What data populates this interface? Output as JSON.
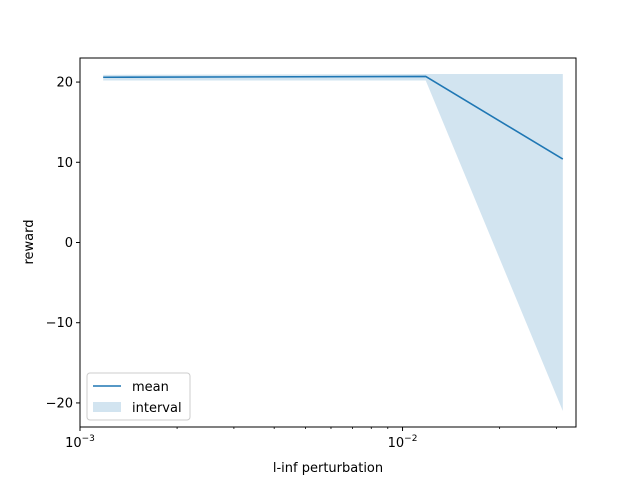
{
  "chart_data": {
    "type": "line",
    "xlabel": "l-inf perturbation",
    "ylabel": "reward",
    "x_scale": "log",
    "xlim": [
      0.001,
      0.0345
    ],
    "ylim": [
      -23,
      23
    ],
    "x_tick_labels": [
      {
        "value": 0.001,
        "base": "10",
        "exp": "−3"
      },
      {
        "value": 0.01,
        "base": "10",
        "exp": "−2"
      }
    ],
    "y_ticks": [
      20,
      10,
      0,
      -10,
      -20
    ],
    "y_tick_labels": [
      "20",
      "10",
      "0",
      "−10",
      "−20"
    ],
    "legend": {
      "position": "lower-left",
      "entries": [
        {
          "label": "mean",
          "kind": "line"
        },
        {
          "label": "interval",
          "kind": "patch"
        }
      ]
    },
    "colors": {
      "mean": "#1f77b4",
      "interval": "#1f77b4"
    },
    "series": [
      {
        "name": "mean",
        "x": [
          0.00118,
          0.0118,
          0.0314
        ],
        "values": [
          20.6,
          20.7,
          10.4
        ]
      }
    ],
    "interval": {
      "name": "interval",
      "x": [
        0.00118,
        0.0118,
        0.0314
      ],
      "lower": [
        20.2,
        20.2,
        -21
      ],
      "upper": [
        20.9,
        21,
        21
      ]
    }
  }
}
